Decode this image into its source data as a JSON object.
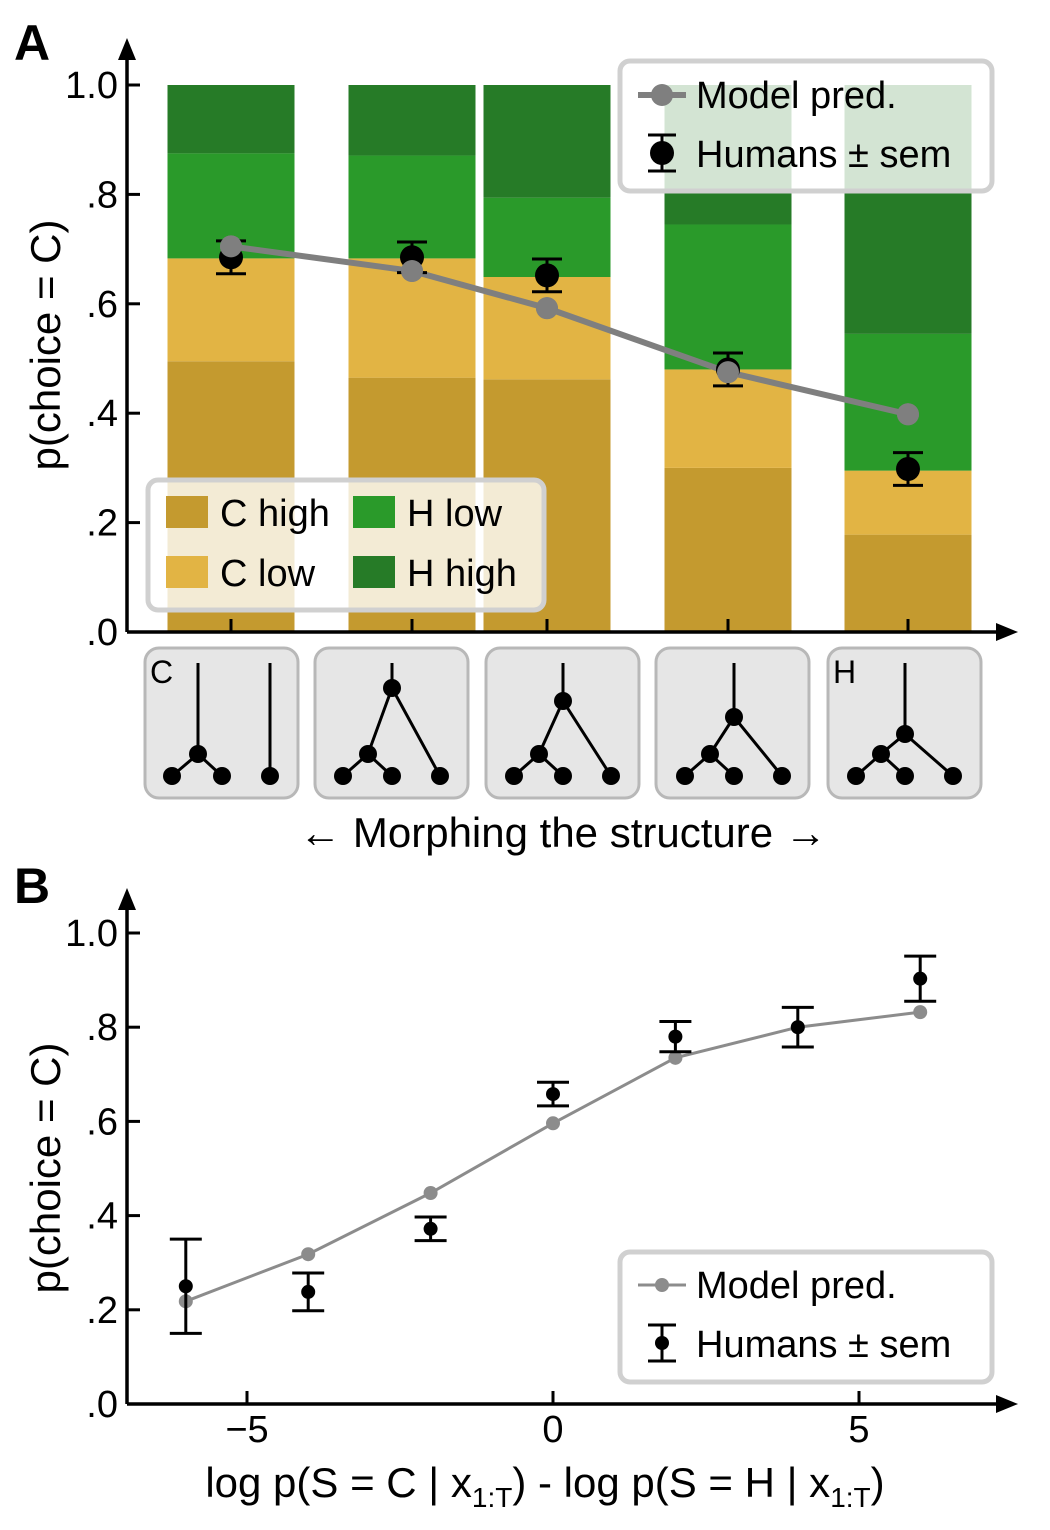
{
  "panel_a": {
    "letter": "A",
    "ylabel": "p(choice = C)",
    "yticks": [
      "1.0",
      ".8",
      ".6",
      ".4",
      ".2",
      ".0"
    ],
    "morph_label": "← Morphing the structure →",
    "structure_labels": [
      "C",
      "",
      "",
      "",
      "H"
    ],
    "legend_line": {
      "model": "Model pred.",
      "humans": "Humans ± sem"
    },
    "legend_stack": {
      "c_high": "C high",
      "h_low": "H low",
      "c_low": "C low",
      "h_high": "H high"
    }
  },
  "panel_b": {
    "letter": "B",
    "ylabel": "p(choice = C)",
    "yticks": [
      "1.0",
      ".8",
      ".6",
      ".4",
      ".2",
      ".0"
    ],
    "xticks": [
      "−5",
      "0",
      "5"
    ],
    "xlabel_parts": {
      "a": "log p(S = C | x",
      "sub1": "1:T",
      "b": ") - log p(S = H | x",
      "sub2": "1:T",
      "c": ")"
    },
    "legend_line": {
      "model": "Model pred.",
      "humans": "Humans ± sem"
    }
  },
  "colors": {
    "c_high": "#c49a2f",
    "c_low": "#e2b444",
    "h_low": "#2a9a2a",
    "h_high": "#267b27",
    "model_a": "#7f7f7f",
    "model_b": "#8c8c8c",
    "humans": "#000000"
  },
  "chart_data": [
    {
      "type": "bar",
      "stacked": true,
      "ylim": [
        0,
        1
      ],
      "series": [
        {
          "name": "C high",
          "values": [
            0.495,
            0.465,
            0.462,
            0.3,
            0.178
          ]
        },
        {
          "name": "C low",
          "values": [
            0.188,
            0.218,
            0.187,
            0.18,
            0.117
          ]
        },
        {
          "name": "H low",
          "values": [
            0.192,
            0.188,
            0.145,
            0.265,
            0.25
          ]
        },
        {
          "name": "H high",
          "values": [
            0.125,
            0.129,
            0.206,
            0.255,
            0.455
          ]
        }
      ],
      "model_pred": [
        0.705,
        0.66,
        0.592,
        0.475,
        0.398
      ],
      "humans_mean": [
        0.685,
        0.685,
        0.652,
        0.48,
        0.298
      ],
      "humans_sem": [
        0.03,
        0.028,
        0.03,
        0.03,
        0.03
      ]
    },
    {
      "type": "line",
      "xlim": [
        -7.3,
        7.5
      ],
      "ylim": [
        0,
        1
      ],
      "x": [
        -6,
        -4,
        -2,
        0,
        2,
        4,
        6
      ],
      "model_pred": [
        0.218,
        0.318,
        0.448,
        0.596,
        0.735,
        0.8,
        0.832
      ],
      "humans_mean": [
        0.25,
        0.238,
        0.372,
        0.658,
        0.78,
        0.8,
        0.903
      ],
      "humans_sem": [
        0.1,
        0.04,
        0.025,
        0.025,
        0.032,
        0.042,
        0.048
      ]
    }
  ]
}
